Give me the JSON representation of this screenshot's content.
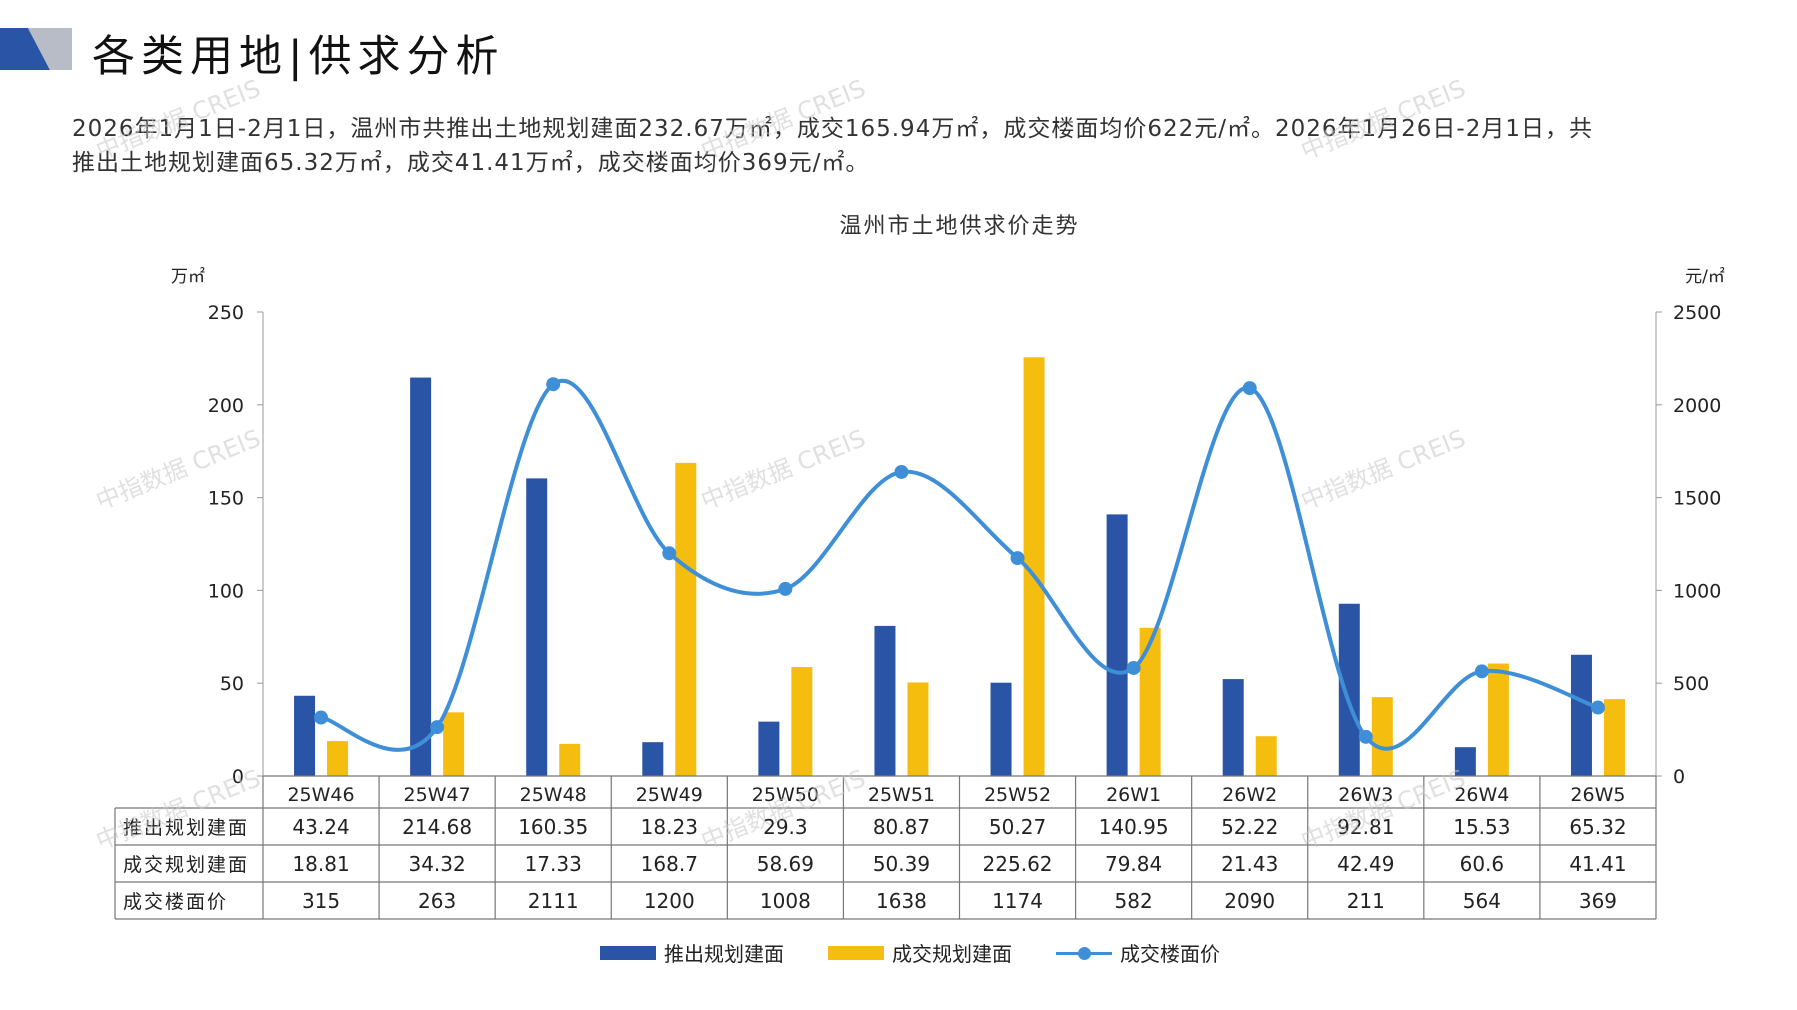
{
  "header": {
    "title": "各类用地|供求分析"
  },
  "summary": {
    "line1": "2026年1月1日-2月1日，温州市共推出土地规划建面232.67万㎡，成交165.94万㎡，成交楼面均价622元/㎡。2026年1月26日-2月1日，共",
    "line2": "推出土地规划建面65.32万㎡，成交41.41万㎡，成交楼面均价369元/㎡。"
  },
  "watermark_text": "中指数据 CREIS",
  "colors": {
    "supply": "#2a54a6",
    "deal": "#f5bd0e",
    "price": "#3f8fd8",
    "logo_dark": "#2a54a6",
    "logo_light": "#b8bcc6"
  },
  "chart_data": {
    "type": "bar",
    "title": "温州市土地供求价走势",
    "y_left_unit": "万㎡",
    "y_right_unit": "元/㎡",
    "ylim_left": [
      0,
      250
    ],
    "ylim_right": [
      0,
      2500
    ],
    "yticks_left": [
      0,
      50,
      100,
      150,
      200,
      250
    ],
    "yticks_right": [
      0,
      500,
      1000,
      1500,
      2000,
      2500
    ],
    "categories": [
      "25W46",
      "25W47",
      "25W48",
      "25W49",
      "25W50",
      "25W51",
      "25W52",
      "26W1",
      "26W2",
      "26W3",
      "26W4",
      "26W5"
    ],
    "series": [
      {
        "name": "推出规划建面",
        "type": "bar",
        "axis": "left",
        "values": [
          43.24,
          214.68,
          160.35,
          18.23,
          29.3,
          80.87,
          50.27,
          140.95,
          52.22,
          92.81,
          15.53,
          65.32
        ],
        "labels": [
          "43.24",
          "214.68",
          "160.35",
          "18.23",
          "29.3",
          "80.87",
          "50.27",
          "140.95",
          "52.22",
          "92.81",
          "15.53",
          "65.32"
        ]
      },
      {
        "name": "成交规划建面",
        "type": "bar",
        "axis": "left",
        "values": [
          18.81,
          34.32,
          17.33,
          168.7,
          58.69,
          50.39,
          225.62,
          79.84,
          21.43,
          42.49,
          60.6,
          41.41
        ],
        "labels": [
          "18.81",
          "34.32",
          "17.33",
          "168.7",
          "58.69",
          "50.39",
          "225.62",
          "79.84",
          "21.43",
          "42.49",
          "60.6",
          "41.41"
        ]
      },
      {
        "name": "成交楼面价",
        "type": "line",
        "axis": "right",
        "values": [
          315,
          263,
          2111,
          1200,
          1008,
          1638,
          1174,
          582,
          2090,
          211,
          564,
          369
        ],
        "labels": [
          "315",
          "263",
          "2111",
          "1200",
          "1008",
          "1638",
          "1174",
          "582",
          "2090",
          "211",
          "564",
          "369"
        ]
      }
    ],
    "legend_position": "bottom",
    "grid": false
  }
}
